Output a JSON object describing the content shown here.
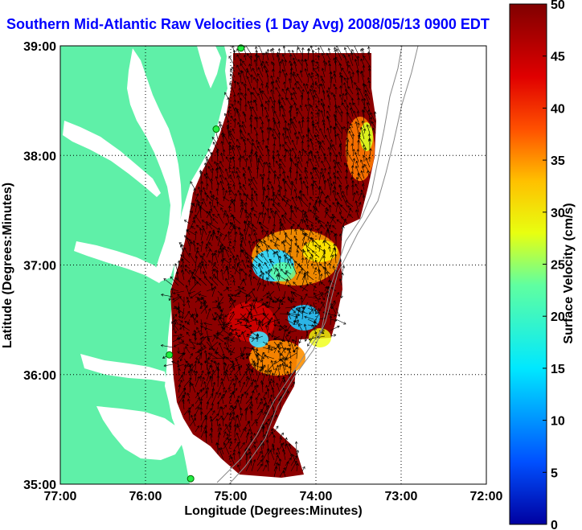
{
  "title": "Southern Mid-Atlantic Raw Velocities (1 Day Avg) 2008/05/13 0900 EDT",
  "map": {
    "xlabel": "Longitude (Degrees:Minutes)",
    "ylabel": "Latitude (Degrees:Minutes)",
    "x_ticks": [
      "77:00",
      "76:00",
      "75:00",
      "74:00",
      "73:00",
      "72:00"
    ],
    "y_ticks": [
      "39:00",
      "38:00",
      "37:00",
      "36:00",
      "35:00"
    ],
    "xlim": [
      -77,
      -72
    ],
    "ylim": [
      35,
      39
    ],
    "land_color": "#5ff0a8",
    "water_color": "#ffffff"
  },
  "colorbar": {
    "label": "Surface Velocity (cm/s)",
    "ticks": [
      "0",
      "5",
      "10",
      "15",
      "20",
      "25",
      "30",
      "35",
      "40",
      "45",
      "50"
    ],
    "range": [
      0,
      50
    ],
    "colormap": "jet"
  },
  "stations": [
    {
      "lon": -74.88,
      "lat": 38.98
    },
    {
      "lon": -75.17,
      "lat": 38.24
    },
    {
      "lon": -75.72,
      "lat": 36.18
    },
    {
      "lon": -75.47,
      "lat": 35.05
    }
  ]
}
